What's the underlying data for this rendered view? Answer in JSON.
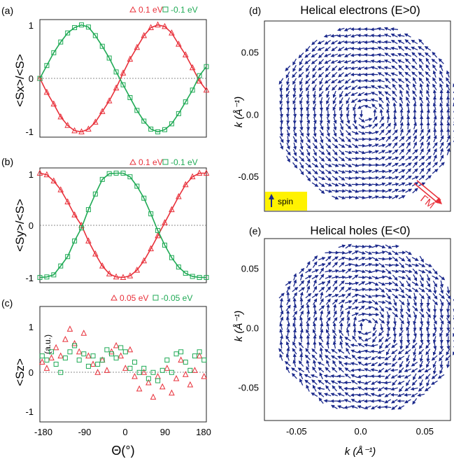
{
  "panels": {
    "a": {
      "label": "(a)",
      "ylabel": "<Sx>/<S>"
    },
    "b": {
      "label": "(b)",
      "ylabel": "<Sy>/<S>"
    },
    "c": {
      "label": "(c)",
      "ylabel": "<Sz>",
      "unit": "(a.u.)"
    },
    "d": {
      "label": "(d)",
      "title": "Helical electrons (E>0)",
      "spin_label": "spin",
      "direction_label": "ΓM"
    },
    "e": {
      "label": "(e)",
      "title": "Helical holes (E<0)"
    }
  },
  "colors": {
    "red": "#e8303a",
    "green": "#1faa55",
    "blue": "#1c2a8c",
    "spin_box": "#fff200"
  },
  "chart_data": [
    {
      "type": "scatter",
      "panel": "a",
      "xlim": [
        -180,
        180
      ],
      "ylim": [
        -1.1,
        1.1
      ],
      "y_ticks": [
        "-1",
        "0",
        "1"
      ],
      "zero_line": "dotted",
      "series": [
        {
          "name": "0.1 eV",
          "marker": "triangle",
          "color": "red",
          "x": [
            -180,
            -165,
            -150,
            -135,
            -120,
            -105,
            -90,
            -75,
            -60,
            -45,
            -30,
            -15,
            0,
            15,
            30,
            45,
            60,
            75,
            90,
            105,
            120,
            135,
            150,
            165,
            180
          ],
          "y": [
            0.0,
            -0.26,
            -0.48,
            -0.72,
            -0.88,
            -0.98,
            -1.0,
            -0.95,
            -0.82,
            -0.62,
            -0.42,
            -0.18,
            0.1,
            0.36,
            0.58,
            0.8,
            0.95,
            1.0,
            0.97,
            0.85,
            0.64,
            0.44,
            0.2,
            -0.05,
            -0.22
          ]
        },
        {
          "name": "-0.1 eV",
          "marker": "square",
          "color": "green",
          "x": [
            -180,
            -165,
            -150,
            -135,
            -120,
            -105,
            -90,
            -75,
            -60,
            -45,
            -30,
            -15,
            0,
            15,
            30,
            45,
            60,
            75,
            90,
            105,
            120,
            135,
            150,
            165,
            180
          ],
          "y": [
            0.0,
            0.24,
            0.48,
            0.68,
            0.85,
            0.95,
            1.0,
            0.96,
            0.8,
            0.6,
            0.38,
            0.12,
            -0.12,
            -0.36,
            -0.6,
            -0.8,
            -0.95,
            -1.0,
            -0.96,
            -0.85,
            -0.66,
            -0.44,
            -0.22,
            0.05,
            0.22
          ]
        }
      ]
    },
    {
      "type": "scatter",
      "panel": "b",
      "xlim": [
        -180,
        180
      ],
      "ylim": [
        -1.1,
        1.1
      ],
      "y_ticks": [
        "-1",
        "0",
        "1"
      ],
      "zero_line": "dotted",
      "series": [
        {
          "name": "0.1 eV",
          "marker": "triangle",
          "color": "red",
          "x": [
            -180,
            -165,
            -150,
            -135,
            -120,
            -105,
            -90,
            -75,
            -60,
            -45,
            -30,
            -15,
            0,
            15,
            30,
            45,
            60,
            75,
            90,
            105,
            120,
            135,
            150,
            165,
            180
          ],
          "y": [
            1.0,
            0.97,
            0.85,
            0.68,
            0.45,
            0.2,
            0.0,
            -0.3,
            -0.55,
            -0.78,
            -0.93,
            -0.99,
            -1.0,
            -0.97,
            -0.86,
            -0.68,
            -0.45,
            -0.2,
            0.05,
            0.3,
            0.55,
            0.78,
            0.93,
            1.0,
            1.0
          ]
        },
        {
          "name": "-0.1 eV",
          "marker": "square",
          "color": "green",
          "x": [
            -180,
            -165,
            -150,
            -135,
            -120,
            -105,
            -90,
            -75,
            -60,
            -45,
            -30,
            -15,
            0,
            15,
            30,
            45,
            60,
            75,
            90,
            105,
            120,
            135,
            150,
            165,
            180
          ],
          "y": [
            -1.0,
            -0.99,
            -0.95,
            -0.78,
            -0.6,
            -0.3,
            -0.05,
            0.3,
            0.6,
            0.88,
            0.99,
            1.0,
            1.0,
            0.93,
            0.75,
            0.52,
            0.22,
            -0.1,
            -0.38,
            -0.62,
            -0.8,
            -0.92,
            -0.98,
            -1.0,
            -1.0
          ]
        }
      ]
    },
    {
      "type": "scatter",
      "panel": "c",
      "xlim": [
        -180,
        180
      ],
      "ylim": [
        -1.4,
        1.4
      ],
      "y_ticks": [
        "-1",
        "0",
        "1"
      ],
      "x_ticks": [
        "-180",
        "-90",
        "0",
        "90",
        "180"
      ],
      "xlabel": "Θ(°)",
      "zero_line": "dotted",
      "series": [
        {
          "name": "0.05 eV",
          "marker": "triangle",
          "color": "red",
          "x": [
            -175,
            -165,
            -155,
            -145,
            -135,
            -125,
            -115,
            -105,
            -95,
            -85,
            -75,
            -65,
            -55,
            -45,
            -35,
            -25,
            -15,
            -5,
            5,
            15,
            25,
            35,
            45,
            55,
            65,
            75,
            85,
            95,
            105,
            115,
            125,
            135,
            145,
            155,
            165,
            175
          ],
          "y": [
            0.05,
            -0.1,
            0.15,
            0.4,
            0.2,
            0.6,
            0.85,
            0.5,
            0.3,
            0.75,
            0.2,
            0.0,
            -0.2,
            0.1,
            -0.15,
            0.3,
            0.45,
            0.2,
            -0.1,
            0.35,
            -0.3,
            -0.6,
            -0.2,
            -0.45,
            -0.8,
            -0.3,
            -0.55,
            -0.1,
            -0.7,
            -0.35,
            0.1,
            -0.25,
            -0.5,
            -0.15,
            0.2,
            -0.3
          ]
        },
        {
          "name": "-0.05 eV",
          "marker": "square",
          "color": "green",
          "x": [
            -175,
            -165,
            -155,
            -145,
            -135,
            -125,
            -115,
            -105,
            -95,
            -85,
            -75,
            -65,
            -55,
            -45,
            -35,
            -25,
            -15,
            -5,
            5,
            15,
            25,
            35,
            45,
            55,
            65,
            75,
            85,
            95,
            105,
            115,
            125,
            135,
            145,
            155,
            165,
            175
          ],
          "y": [
            0.2,
            0.1,
            0.3,
            0.0,
            -0.2,
            0.15,
            0.3,
            0.45,
            0.1,
            0.25,
            -0.05,
            0.2,
            0.0,
            0.1,
            0.35,
            0.25,
            0.15,
            0.4,
            0.3,
            -0.1,
            0.05,
            -0.2,
            -0.1,
            -0.35,
            -0.2,
            -0.4,
            -0.15,
            0.1,
            -0.2,
            0.25,
            0.3,
            0.05,
            -0.15,
            0.2,
            0.3,
            0.1
          ]
        }
      ]
    },
    {
      "type": "vector_field",
      "panel": "d",
      "xlim": [
        -0.075,
        0.07
      ],
      "ylim": [
        -0.078,
        0.075
      ],
      "x_ticks": [],
      "y_ticks": [
        "0.05",
        "0.0",
        "-0.05"
      ],
      "y_tick_values": [
        0.05,
        0.0,
        -0.05
      ],
      "ylabel": "k (Å⁻¹)",
      "radius": 0.072,
      "center": [
        0.005,
        0.0
      ],
      "circulation": "counterclockwise",
      "color": "blue"
    },
    {
      "type": "vector_field",
      "panel": "e",
      "xlim": [
        -0.075,
        0.07
      ],
      "ylim": [
        -0.078,
        0.075
      ],
      "x_ticks": [
        "-0.05",
        "0.0",
        "0.05"
      ],
      "x_tick_values": [
        -0.05,
        0.0,
        0.05
      ],
      "y_ticks": [
        "0.05",
        "0.0",
        "-0.05"
      ],
      "y_tick_values": [
        0.05,
        0.0,
        -0.05
      ],
      "xlabel": "k (Å⁻¹)",
      "ylabel": "k (Å⁻¹)",
      "radius": 0.072,
      "center": [
        0.005,
        0.0
      ],
      "circulation": "clockwise",
      "color": "blue"
    }
  ]
}
